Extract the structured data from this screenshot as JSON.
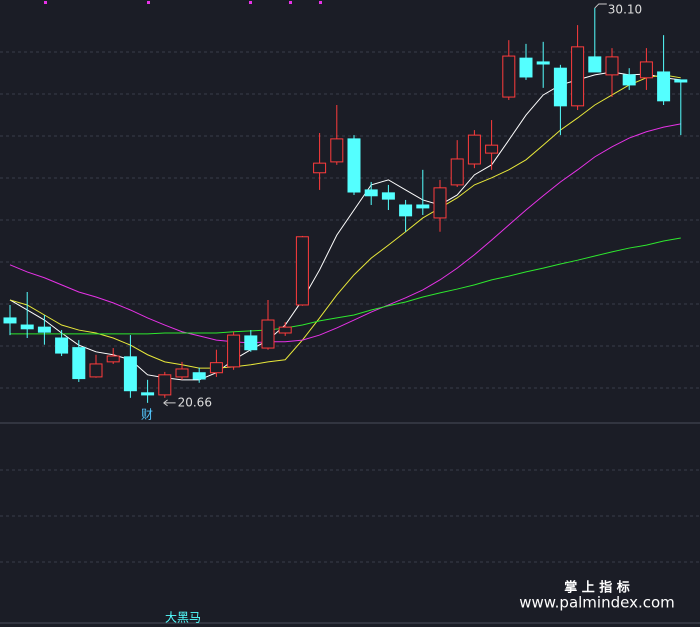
{
  "chart_data": {
    "type": "candlestick",
    "ylim": [
      20.25,
      30.29
    ],
    "up_color": "#ff3c3c",
    "down_color": "#54ffff",
    "open": [
      22.69,
      22.52,
      22.47,
      22.21,
      21.98,
      21.28,
      21.64,
      21.76,
      20.9,
      20.85,
      21.28,
      21.38,
      21.38,
      21.52,
      22.26,
      21.97,
      22.33,
      23.0,
      26.16,
      26.42,
      26.97,
      25.75,
      25.68,
      25.39,
      25.39,
      25.08,
      25.87,
      26.37,
      26.63,
      27.97,
      28.9,
      28.81,
      28.66,
      27.76,
      28.93,
      28.5,
      28.5,
      28.43,
      28.57,
      28.38
    ],
    "high": [
      23.0,
      23.31,
      22.76,
      22.4,
      22.16,
      21.81,
      21.97,
      22.28,
      21.21,
      21.4,
      21.64,
      21.5,
      21.93,
      22.36,
      22.4,
      23.12,
      22.59,
      24.65,
      27.11,
      27.78,
      27.06,
      25.94,
      25.87,
      25.51,
      26.23,
      25.99,
      26.94,
      27.18,
      27.42,
      29.33,
      29.24,
      29.29,
      28.74,
      29.69,
      30.1,
      29.14,
      28.66,
      29.14,
      29.45,
      28.38
    ],
    "low": [
      22.28,
      22.21,
      22.05,
      21.78,
      21.16,
      21.26,
      21.59,
      20.78,
      20.66,
      20.78,
      21.21,
      21.14,
      21.28,
      21.45,
      21.88,
      21.93,
      22.26,
      22.98,
      25.75,
      26.35,
      25.63,
      25.39,
      25.27,
      24.75,
      25.15,
      24.75,
      25.82,
      26.27,
      26.23,
      27.9,
      28.38,
      28.19,
      27.06,
      27.66,
      28.57,
      27.97,
      28.14,
      28.14,
      27.78,
      27.06
    ],
    "close": [
      22.57,
      22.43,
      22.35,
      21.85,
      21.24,
      21.59,
      21.78,
      20.95,
      20.85,
      21.33,
      21.47,
      21.23,
      21.62,
      22.28,
      21.93,
      22.64,
      22.47,
      24.63,
      26.39,
      26.97,
      25.7,
      25.61,
      25.53,
      25.13,
      25.32,
      25.8,
      26.49,
      27.06,
      26.82,
      28.95,
      28.45,
      28.76,
      27.76,
      29.17,
      28.57,
      28.93,
      28.26,
      28.81,
      27.88,
      28.33
    ],
    "lines": [
      {
        "color": "#ffffff",
        "values": [
          23.12,
          22.88,
          22.64,
          22.33,
          22.04,
          21.88,
          21.81,
          21.69,
          21.33,
          21.26,
          21.21,
          21.21,
          21.38,
          21.69,
          21.93,
          22.16,
          22.52,
          23.12,
          23.84,
          24.67,
          25.27,
          25.87,
          25.99,
          25.75,
          25.51,
          25.39,
          25.63,
          26.11,
          26.35,
          26.94,
          27.54,
          28.02,
          28.26,
          28.38,
          28.5,
          28.57,
          28.5,
          28.52,
          28.43,
          28.38
        ]
      },
      {
        "color": "#e8e83a",
        "values": [
          23.12,
          23.0,
          22.76,
          22.52,
          22.4,
          22.33,
          22.21,
          22.04,
          21.81,
          21.64,
          21.57,
          21.49,
          21.49,
          21.52,
          21.57,
          21.64,
          21.69,
          22.16,
          22.69,
          23.24,
          23.72,
          24.12,
          24.43,
          24.75,
          25.08,
          25.32,
          25.56,
          25.87,
          26.04,
          26.23,
          26.47,
          26.82,
          27.18,
          27.47,
          27.78,
          28.02,
          28.26,
          28.43,
          28.5,
          28.43
        ]
      },
      {
        "color": "#e632e6",
        "values": [
          23.96,
          23.79,
          23.65,
          23.48,
          23.31,
          23.19,
          23.05,
          22.88,
          22.69,
          22.52,
          22.36,
          22.26,
          22.16,
          22.12,
          22.09,
          22.12,
          22.12,
          22.16,
          22.28,
          22.45,
          22.64,
          22.83,
          23.0,
          23.17,
          23.36,
          23.6,
          23.88,
          24.2,
          24.55,
          24.91,
          25.27,
          25.61,
          25.94,
          26.23,
          26.54,
          26.78,
          26.99,
          27.14,
          27.25,
          27.33
        ]
      },
      {
        "color": "#2ee82e",
        "values": [
          22.31,
          22.31,
          22.31,
          22.31,
          22.31,
          22.31,
          22.31,
          22.31,
          22.31,
          22.33,
          22.33,
          22.33,
          22.33,
          22.36,
          22.38,
          22.4,
          22.45,
          22.52,
          22.62,
          22.69,
          22.76,
          22.88,
          22.98,
          23.07,
          23.19,
          23.29,
          23.38,
          23.48,
          23.6,
          23.69,
          23.79,
          23.88,
          23.98,
          24.07,
          24.17,
          24.27,
          24.36,
          24.43,
          24.53,
          24.6
        ]
      }
    ],
    "annotations": [
      {
        "value": 30.1,
        "label": "30.10"
      },
      {
        "value": 20.66,
        "label": "20.66"
      }
    ],
    "events": [
      "财"
    ],
    "indicator_label": "大黑马"
  },
  "watermark": {
    "title": "掌 上 指 标",
    "url": "www.palmindex.com"
  }
}
